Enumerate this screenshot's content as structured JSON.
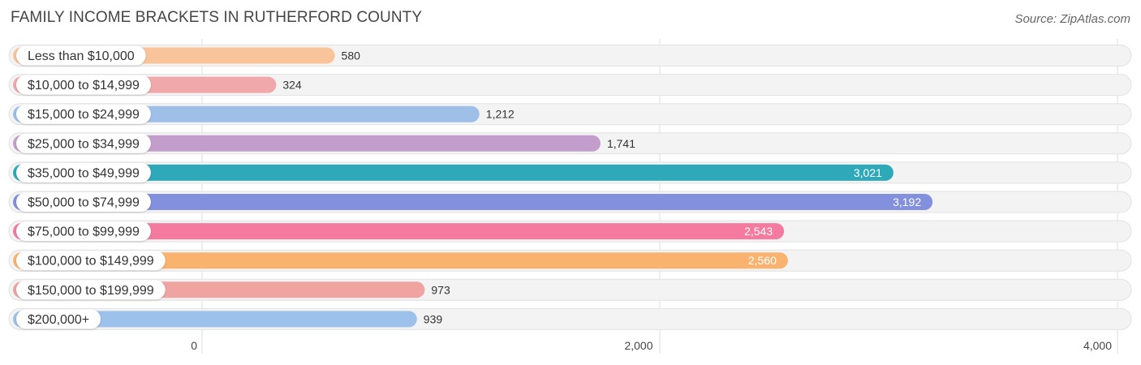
{
  "header": {
    "title": "FAMILY INCOME BRACKETS IN RUTHERFORD COUNTY",
    "source": "Source: ZipAtlas.com"
  },
  "chart_data": {
    "type": "bar",
    "orientation": "horizontal",
    "categories": [
      "Less than $10,000",
      "$10,000 to $14,999",
      "$15,000 to $24,999",
      "$25,000 to $34,999",
      "$35,000 to $49,999",
      "$50,000 to $74,999",
      "$75,000 to $99,999",
      "$100,000 to $149,999",
      "$150,000 to $199,999",
      "$200,000+"
    ],
    "values": [
      580,
      324,
      1212,
      1741,
      3021,
      3192,
      2543,
      2560,
      973,
      939
    ],
    "value_labels": [
      "580",
      "324",
      "1,212",
      "1,741",
      "3,021",
      "3,192",
      "2,543",
      "2,560",
      "973",
      "939"
    ],
    "colors": [
      "#f9c49a",
      "#f0a8ab",
      "#9dbfe8",
      "#c39dcb",
      "#2ea9b9",
      "#8390de",
      "#f47aa0",
      "#f9b36f",
      "#efa4a2",
      "#9cc1ea"
    ],
    "xlim": [
      0,
      4000
    ],
    "xticks": [
      0,
      2000,
      4000
    ],
    "xtick_labels": [
      "0",
      "2,000",
      "4,000"
    ],
    "grid": true
  }
}
